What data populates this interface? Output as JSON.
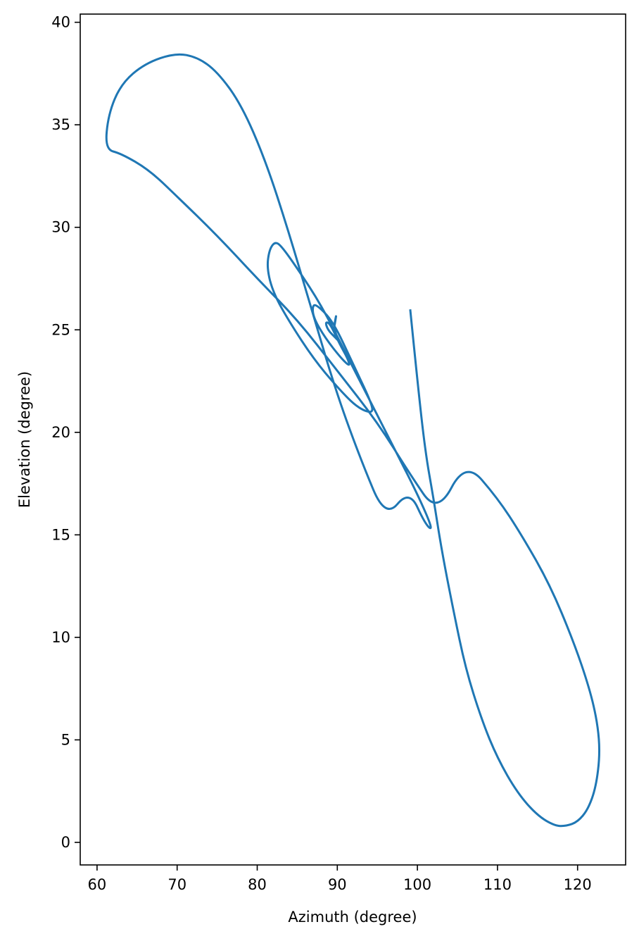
{
  "chart_data": {
    "type": "line",
    "title": "",
    "xlabel": "Azimuth (degree)",
    "ylabel": "Elevation (degree)",
    "xlim": [
      57.9,
      126.0
    ],
    "ylim": [
      -1.1,
      40.4
    ],
    "xticks": [
      60,
      70,
      80,
      90,
      100,
      110,
      120
    ],
    "yticks": [
      0,
      5,
      10,
      15,
      20,
      25,
      30,
      35,
      40
    ],
    "grid": false,
    "legend": "none",
    "line_color": "#1f77b4",
    "series": [
      {
        "points": [
          [
            99.1,
            26.0
          ],
          [
            100.0,
            22.5
          ],
          [
            101.0,
            19.0
          ],
          [
            102.0,
            16.8
          ],
          [
            103.0,
            14.3
          ],
          [
            104.5,
            11.3
          ],
          [
            106.0,
            8.5
          ],
          [
            108.0,
            6.0
          ],
          [
            110.0,
            4.1
          ],
          [
            112.5,
            2.4
          ],
          [
            115.0,
            1.3
          ],
          [
            117.2,
            0.8
          ],
          [
            118.6,
            0.8
          ],
          [
            120.0,
            1.0
          ],
          [
            121.3,
            1.6
          ],
          [
            122.3,
            2.7
          ],
          [
            122.8,
            4.3
          ],
          [
            122.5,
            5.8
          ],
          [
            121.5,
            7.5
          ],
          [
            119.5,
            9.8
          ],
          [
            116.5,
            12.6
          ],
          [
            113.0,
            15.0
          ],
          [
            110.0,
            16.8
          ],
          [
            106.0,
            18.6
          ],
          [
            102.5,
            16.0
          ],
          [
            99.0,
            18.0
          ],
          [
            95.0,
            20.5
          ],
          [
            90.0,
            23.0
          ],
          [
            85.0,
            25.5
          ],
          [
            80.0,
            27.5
          ],
          [
            75.0,
            29.6
          ],
          [
            70.0,
            31.5
          ],
          [
            66.5,
            32.8
          ],
          [
            63.0,
            33.6
          ],
          [
            61.0,
            33.8
          ],
          [
            61.4,
            35.5
          ],
          [
            63.0,
            37.0
          ],
          [
            66.0,
            38.0
          ],
          [
            69.8,
            38.5
          ],
          [
            72.5,
            38.3
          ],
          [
            75.0,
            37.6
          ],
          [
            78.0,
            36.0
          ],
          [
            81.0,
            33.3
          ],
          [
            84.0,
            29.7
          ],
          [
            87.0,
            25.7
          ],
          [
            90.0,
            21.8
          ],
          [
            93.0,
            18.6
          ],
          [
            96.0,
            15.8
          ],
          [
            99.0,
            17.2
          ],
          [
            101.0,
            15.5
          ],
          [
            102.0,
            15.2
          ],
          [
            100.0,
            17.0
          ],
          [
            97.0,
            19.3
          ],
          [
            94.0,
            21.6
          ],
          [
            91.0,
            23.9
          ],
          [
            88.0,
            26.2
          ],
          [
            85.0,
            28.0
          ],
          [
            83.0,
            29.1
          ],
          [
            82.2,
            29.3
          ],
          [
            81.5,
            28.9
          ],
          [
            81.2,
            28.0
          ],
          [
            82.0,
            26.8
          ],
          [
            84.0,
            25.4
          ],
          [
            87.0,
            23.6
          ],
          [
            90.0,
            22.2
          ],
          [
            92.5,
            21.2
          ],
          [
            94.5,
            20.9
          ],
          [
            94.2,
            21.5
          ],
          [
            92.0,
            23.3
          ],
          [
            89.5,
            25.4
          ],
          [
            87.5,
            26.2
          ],
          [
            86.9,
            26.2
          ],
          [
            87.0,
            25.6
          ],
          [
            88.5,
            24.6
          ],
          [
            90.5,
            23.6
          ],
          [
            91.6,
            23.2
          ],
          [
            91.3,
            23.6
          ],
          [
            90.3,
            24.3
          ],
          [
            89.1,
            25.3
          ],
          [
            88.5,
            25.4
          ],
          [
            88.8,
            25.0
          ],
          [
            89.8,
            24.6
          ],
          [
            90.3,
            24.4
          ],
          [
            89.9,
            24.7
          ],
          [
            89.6,
            25.1
          ],
          [
            89.7,
            25.3
          ],
          [
            89.9,
            25.8
          ],
          [
            89.6,
            25.2
          ],
          [
            89.7,
            24.9
          ],
          [
            89.9,
            25.0
          ]
        ]
      }
    ]
  }
}
